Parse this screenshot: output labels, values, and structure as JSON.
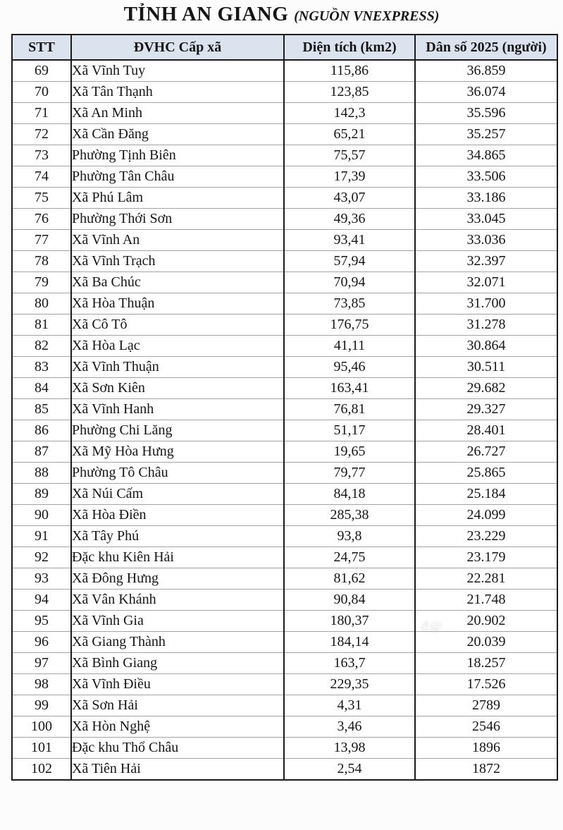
{
  "title": "TỈNH AN GIANG",
  "subtitle": "(NGUỒN VNEXPRESS)",
  "watermark": "đ@",
  "colors": {
    "header_bg": "#dbe3ee",
    "border_dark": "#1b1b1b",
    "row_line": "#a3a3a3",
    "text": "#161616",
    "page_bg": "#fcfcfc",
    "watermark_color": "#c4c4c4"
  },
  "table": {
    "headers": [
      "STT",
      "ĐVHC Cấp xã",
      "Diện tích (km2)",
      "Dân số 2025 (người)"
    ],
    "rows": [
      [
        "69",
        "Xã Vĩnh Tuy",
        "115,86",
        "36.859"
      ],
      [
        "70",
        "Xã Tân Thạnh",
        "123,85",
        "36.074"
      ],
      [
        "71",
        "Xã An Minh",
        "142,3",
        "35.596"
      ],
      [
        "72",
        "Xã Cần Đăng",
        "65,21",
        "35.257"
      ],
      [
        "73",
        "Phường Tịnh Biên",
        "75,57",
        "34.865"
      ],
      [
        "74",
        "Phường Tân Châu",
        "17,39",
        "33.506"
      ],
      [
        "75",
        "Xã Phú Lâm",
        "43,07",
        "33.186"
      ],
      [
        "76",
        "Phường Thới Sơn",
        "49,36",
        "33.045"
      ],
      [
        "77",
        "Xã Vĩnh An",
        "93,41",
        "33.036"
      ],
      [
        "78",
        "Xã Vĩnh Trạch",
        "57,94",
        "32.397"
      ],
      [
        "79",
        "Xã Ba Chúc",
        "70,94",
        "32.071"
      ],
      [
        "80",
        "Xã Hòa Thuận",
        "73,85",
        "31.700"
      ],
      [
        "81",
        "Xã Cô Tô",
        "176,75",
        "31.278"
      ],
      [
        "82",
        "Xã Hòa Lạc",
        "41,11",
        "30.864"
      ],
      [
        "83",
        "Xã Vĩnh Thuận",
        "95,46",
        "30.511"
      ],
      [
        "84",
        "Xã Sơn Kiên",
        "163,41",
        "29.682"
      ],
      [
        "85",
        "Xã Vĩnh Hanh",
        "76,81",
        "29.327"
      ],
      [
        "86",
        "Phường Chi Lăng",
        "51,17",
        "28.401"
      ],
      [
        "87",
        "Xã Mỹ Hòa Hưng",
        "19,65",
        "26.727"
      ],
      [
        "88",
        "Phường Tô Châu",
        "79,77",
        "25.865"
      ],
      [
        "89",
        "Xã Núi Cấm",
        "84,18",
        "25.184"
      ],
      [
        "90",
        "Xã Hòa Điền",
        "285,38",
        "24.099"
      ],
      [
        "91",
        "Xã Tây Phú",
        "93,8",
        "23.229"
      ],
      [
        "92",
        "Đặc khu Kiên Hải",
        "24,75",
        "23.179"
      ],
      [
        "93",
        "Xã Đông Hưng",
        "81,62",
        "22.281"
      ],
      [
        "94",
        "Xã Vân Khánh",
        "90,84",
        "21.748"
      ],
      [
        "95",
        "Xã Vĩnh Gia",
        "180,37",
        "20.902"
      ],
      [
        "96",
        "Xã Giang Thành",
        "184,14",
        "20.039"
      ],
      [
        "97",
        "Xã Bình Giang",
        "163,7",
        "18.257"
      ],
      [
        "98",
        "Xã Vĩnh Điều",
        "229,35",
        "17.526"
      ],
      [
        "99",
        "Xã Sơn Hải",
        "4,31",
        "2789"
      ],
      [
        "100",
        "Xã Hòn Nghệ",
        "3,46",
        "2546"
      ],
      [
        "101",
        "Đặc khu Thổ Châu",
        "13,98",
        "1896"
      ],
      [
        "102",
        "Xã Tiên Hải",
        "2,54",
        "1872"
      ]
    ]
  }
}
